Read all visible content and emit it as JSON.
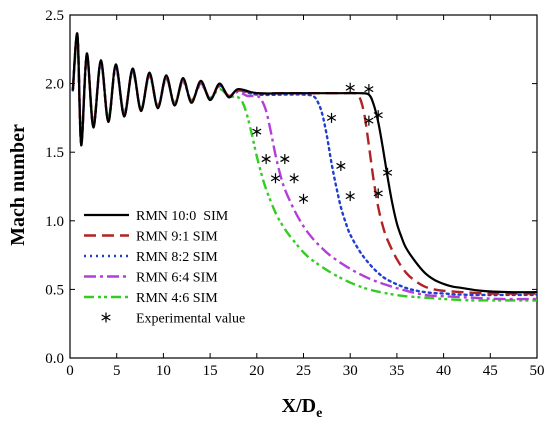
{
  "chart_data": {
    "type": "line",
    "xlabel": {
      "main": "X/D",
      "sub": "e"
    },
    "ylabel": "Mach number",
    "xlim": [
      0,
      50
    ],
    "ylim": [
      0,
      2.5
    ],
    "x_ticks": [
      0,
      5,
      10,
      15,
      20,
      25,
      30,
      35,
      40,
      45,
      50
    ],
    "x_tick_labels": [
      "0",
      "5",
      "10",
      "15",
      "20",
      "25",
      "30",
      "35",
      "40",
      "45",
      "50"
    ],
    "y_ticks": [
      0,
      0.5,
      1.0,
      1.5,
      2.0,
      2.5
    ],
    "y_tick_labels": [
      "0.0",
      "0.5",
      "1.0",
      "1.5",
      "2.0",
      "2.5"
    ],
    "grid": false,
    "legend_position": "lower-left",
    "series": [
      {
        "name": "RMN 10:0  SIM",
        "color": "#000000",
        "style": "solid",
        "plateau": 1.93,
        "final": 0.48,
        "x": [
          0.3,
          0.8,
          1.2,
          1.8,
          2.5,
          3.3,
          4.1,
          4.9,
          5.8,
          6.7,
          7.6,
          8.5,
          9.4,
          10.3,
          11.2,
          12.1,
          13.0,
          14.0,
          15.0,
          16.0,
          17.0,
          18.0,
          20.0,
          23.0,
          26.0,
          29.0,
          31.0,
          32.0,
          32.5,
          33.0,
          33.5,
          34.0,
          34.5,
          35.0,
          35.5,
          36.0,
          37.0,
          38.0,
          39.0,
          40.0,
          41.0,
          42.0,
          44.0,
          47.0,
          50.0
        ],
        "y": [
          1.95,
          2.36,
          1.55,
          2.22,
          1.68,
          2.17,
          1.72,
          2.14,
          1.76,
          2.11,
          1.8,
          2.08,
          1.82,
          2.06,
          1.84,
          2.04,
          1.86,
          2.02,
          1.88,
          2.0,
          1.9,
          1.96,
          1.93,
          1.93,
          1.93,
          1.93,
          1.93,
          1.92,
          1.85,
          1.72,
          1.53,
          1.32,
          1.13,
          0.98,
          0.88,
          0.8,
          0.7,
          0.62,
          0.57,
          0.54,
          0.52,
          0.51,
          0.49,
          0.48,
          0.48
        ]
      },
      {
        "name": "RMN 9:1 SIM",
        "color": "#b22222",
        "style": "dashed",
        "plateau": 1.93,
        "final": 0.47,
        "x": [
          0.3,
          0.8,
          1.2,
          1.8,
          2.5,
          3.3,
          4.1,
          4.9,
          5.8,
          6.7,
          7.6,
          8.5,
          9.4,
          10.3,
          11.2,
          12.1,
          13.0,
          14.0,
          15.0,
          16.0,
          17.0,
          18.0,
          20.0,
          23.0,
          26.0,
          29.0,
          30.5,
          31.0,
          31.5,
          32.0,
          32.5,
          33.0,
          33.5,
          34.0,
          35.0,
          36.0,
          37.0,
          38.0,
          39.0,
          40.0,
          42.0,
          45.0,
          50.0
        ],
        "y": [
          1.95,
          2.34,
          1.57,
          2.2,
          1.7,
          2.16,
          1.73,
          2.13,
          1.77,
          2.1,
          1.81,
          2.07,
          1.83,
          2.05,
          1.85,
          2.03,
          1.87,
          2.01,
          1.89,
          1.99,
          1.91,
          1.95,
          1.93,
          1.93,
          1.93,
          1.93,
          1.93,
          1.9,
          1.78,
          1.55,
          1.3,
          1.1,
          0.96,
          0.86,
          0.72,
          0.62,
          0.56,
          0.52,
          0.5,
          0.49,
          0.48,
          0.47,
          0.47
        ]
      },
      {
        "name": "RMN 8:2 SIM",
        "color": "#1f3fd0",
        "style": "dotted",
        "plateau": 1.92,
        "final": 0.46,
        "x": [
          0.3,
          0.8,
          1.2,
          1.8,
          2.5,
          3.3,
          4.1,
          4.9,
          5.8,
          6.7,
          7.6,
          8.5,
          9.4,
          10.3,
          11.2,
          12.1,
          13.0,
          14.0,
          15.0,
          16.0,
          17.0,
          18.0,
          20.0,
          23.0,
          25.0,
          26.0,
          26.5,
          27.0,
          27.5,
          28.0,
          28.5,
          29.0,
          29.5,
          30.0,
          31.0,
          32.0,
          33.0,
          34.0,
          36.0,
          38.0,
          40.0,
          43.0,
          50.0
        ],
        "y": [
          1.95,
          2.35,
          1.56,
          2.21,
          1.69,
          2.16,
          1.73,
          2.13,
          1.77,
          2.1,
          1.81,
          2.07,
          1.83,
          2.05,
          1.85,
          2.03,
          1.87,
          2.01,
          1.89,
          1.99,
          1.91,
          1.95,
          1.92,
          1.92,
          1.92,
          1.91,
          1.87,
          1.78,
          1.62,
          1.42,
          1.25,
          1.1,
          0.99,
          0.9,
          0.78,
          0.69,
          0.62,
          0.57,
          0.51,
          0.48,
          0.47,
          0.46,
          0.46
        ]
      },
      {
        "name": "RMN 6:4 SIM",
        "color": "#b23fd9",
        "style": "dashdot",
        "plateau": 1.91,
        "final": 0.43,
        "x": [
          0.3,
          0.8,
          1.2,
          1.8,
          2.5,
          3.3,
          4.1,
          4.9,
          5.8,
          6.7,
          7.6,
          8.5,
          9.4,
          10.3,
          11.2,
          12.1,
          13.0,
          14.0,
          15.0,
          16.0,
          17.0,
          18.0,
          19.0,
          20.0,
          20.5,
          21.0,
          21.5,
          22.0,
          22.5,
          23.0,
          24.0,
          25.0,
          26.0,
          27.0,
          28.0,
          30.0,
          32.0,
          34.0,
          36.0,
          38.0,
          40.0,
          43.0,
          46.0,
          50.0
        ],
        "y": [
          1.95,
          2.33,
          1.58,
          2.2,
          1.7,
          2.15,
          1.74,
          2.12,
          1.78,
          2.09,
          1.81,
          2.06,
          1.83,
          2.04,
          1.85,
          2.02,
          1.87,
          2.0,
          1.89,
          1.98,
          1.91,
          1.94,
          1.91,
          1.91,
          1.88,
          1.8,
          1.65,
          1.48,
          1.34,
          1.23,
          1.08,
          0.96,
          0.87,
          0.8,
          0.74,
          0.65,
          0.58,
          0.53,
          0.49,
          0.46,
          0.45,
          0.44,
          0.43,
          0.43
        ]
      },
      {
        "name": "RMN 4:6 SIM",
        "color": "#33cc22",
        "style": "dashdotdot",
        "plateau": 1.9,
        "final": 0.42,
        "x": [
          0.3,
          0.8,
          1.2,
          1.8,
          2.5,
          3.3,
          4.1,
          4.9,
          5.8,
          6.7,
          7.6,
          8.5,
          9.4,
          10.3,
          11.2,
          12.1,
          13.0,
          14.0,
          15.0,
          16.0,
          17.0,
          18.0,
          18.5,
          19.0,
          19.5,
          20.0,
          20.5,
          21.0,
          22.0,
          23.0,
          24.0,
          25.0,
          26.0,
          28.0,
          30.0,
          32.0,
          34.0,
          36.0,
          38.0,
          40.0,
          43.0,
          46.0,
          50.0
        ],
        "y": [
          1.95,
          2.3,
          1.6,
          2.18,
          1.72,
          2.14,
          1.75,
          2.11,
          1.79,
          2.08,
          1.82,
          2.05,
          1.84,
          2.03,
          1.86,
          2.01,
          1.88,
          1.99,
          1.9,
          1.96,
          1.91,
          1.9,
          1.86,
          1.76,
          1.62,
          1.47,
          1.34,
          1.23,
          1.06,
          0.94,
          0.85,
          0.77,
          0.71,
          0.62,
          0.55,
          0.5,
          0.47,
          0.45,
          0.44,
          0.43,
          0.42,
          0.42,
          0.42
        ]
      },
      {
        "name": "Experimental value",
        "color": "#000000",
        "style": "markers",
        "marker": "*",
        "x": [
          20.0,
          21.0,
          22.0,
          23.0,
          24.0,
          25.0,
          28.0,
          29.0,
          30.0,
          30.0,
          32.0,
          32.0,
          33.0,
          33.0,
          34.0
        ],
        "y": [
          1.65,
          1.45,
          1.31,
          1.45,
          1.31,
          1.16,
          1.75,
          1.4,
          1.18,
          1.97,
          1.96,
          1.73,
          1.77,
          1.2,
          1.35
        ]
      }
    ]
  }
}
